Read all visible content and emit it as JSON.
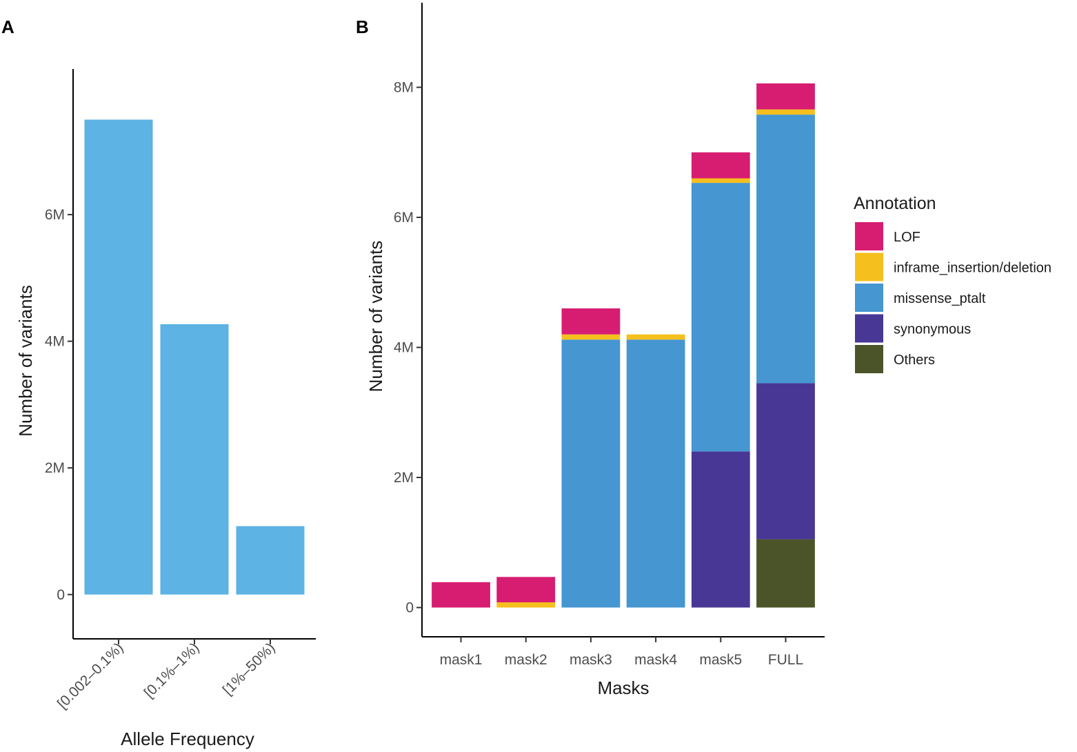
{
  "chart_data": [
    {
      "panel": "A",
      "type": "bar",
      "xlabel": "Allele Frequency",
      "ylabel": "Number of variants",
      "categories": [
        "[0.002–0.1%)",
        "[0.1%–1%)",
        "[1%–50%)"
      ],
      "values": [
        7500000,
        4270000,
        1080000
      ],
      "color": "#5db3e3",
      "ylim": [
        -700000,
        8300000
      ],
      "yticks": [
        0,
        2000000,
        4000000,
        6000000
      ],
      "ytick_labels": [
        "0",
        "2M",
        "4M",
        "6M"
      ]
    },
    {
      "panel": "B",
      "type": "bar",
      "stacked": true,
      "xlabel": "Masks",
      "ylabel": "Number of variants",
      "categories": [
        "mask1",
        "mask2",
        "mask3",
        "mask4",
        "mask5",
        "FULL"
      ],
      "ylim": [
        -450000,
        9300000
      ],
      "yticks": [
        0,
        2000000,
        4000000,
        6000000,
        8000000
      ],
      "ytick_labels": [
        "0",
        "2M",
        "4M",
        "6M",
        "8M"
      ],
      "legend": {
        "title": "Annotation",
        "placement": "right"
      },
      "series": [
        {
          "name": "Others",
          "color": "#4a5428",
          "values": [
            0,
            0,
            0,
            0,
            0,
            1050000
          ]
        },
        {
          "name": "synonymous",
          "color": "#483795",
          "values": [
            0,
            0,
            0,
            0,
            2400000,
            2400000
          ]
        },
        {
          "name": "missense_ptalt",
          "color": "#4596d1",
          "values": [
            0,
            0,
            4120000,
            4120000,
            4130000,
            4130000
          ]
        },
        {
          "name": "inframe_insertion/deletion",
          "color": "#f5c01e",
          "values": [
            0,
            80000,
            80000,
            80000,
            70000,
            80000
          ]
        },
        {
          "name": "LOF",
          "color": "#d71d71",
          "values": [
            390000,
            390000,
            400000,
            0,
            400000,
            400000
          ]
        }
      ],
      "legend_order": [
        "LOF",
        "inframe_insertion/deletion",
        "missense_ptalt",
        "synonymous",
        "Others"
      ]
    }
  ]
}
